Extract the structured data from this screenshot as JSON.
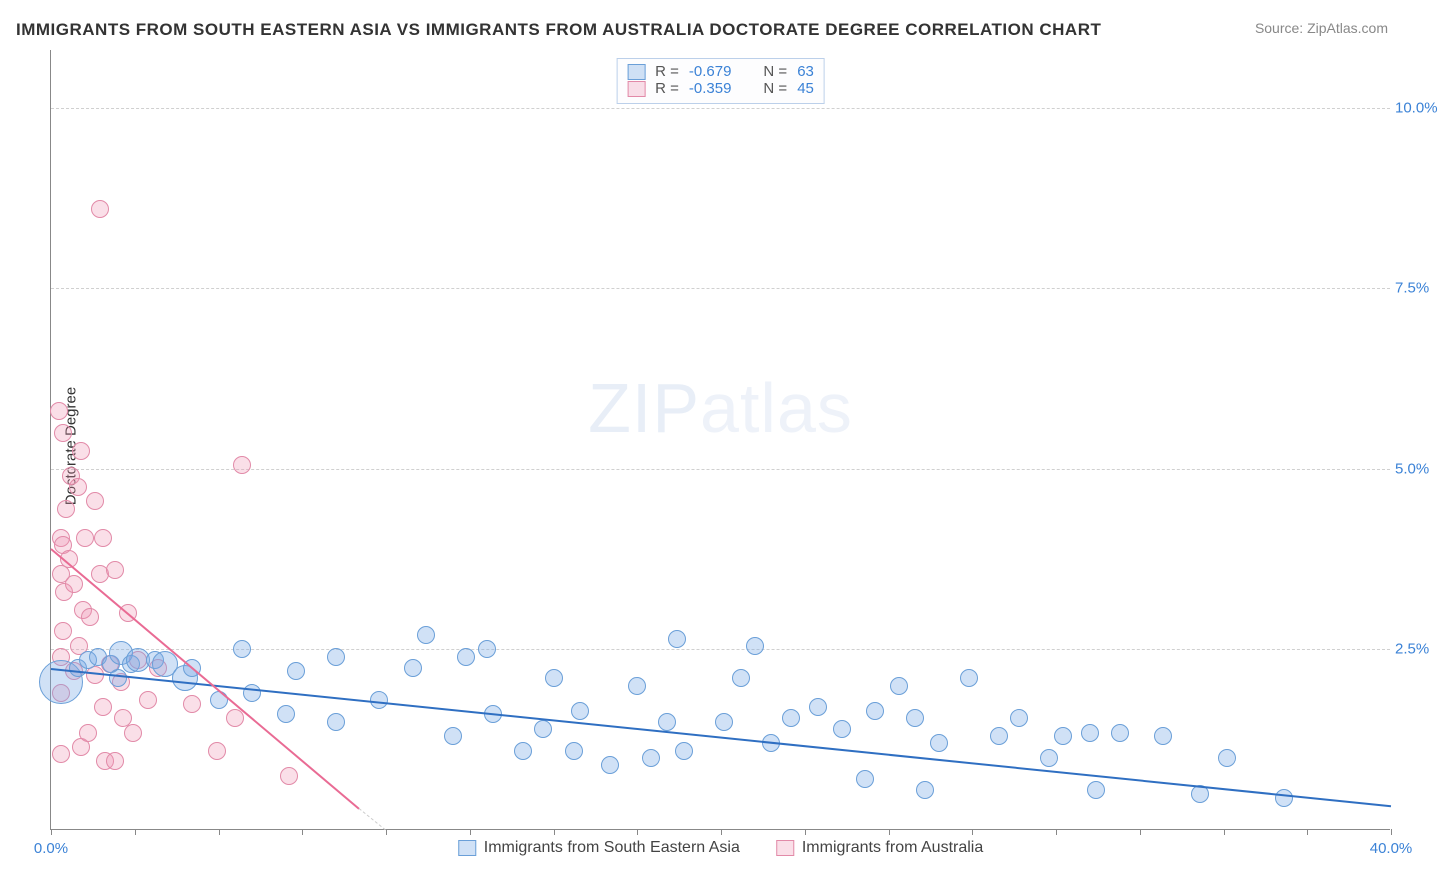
{
  "title": "IMMIGRANTS FROM SOUTH EASTERN ASIA VS IMMIGRANTS FROM AUSTRALIA DOCTORATE DEGREE CORRELATION CHART",
  "source": "Source: ZipAtlas.com",
  "watermark_a": "ZIP",
  "watermark_b": "atlas",
  "y_axis_title": "Doctorate Degree",
  "chart": {
    "type": "scatter",
    "xlim": [
      0,
      40
    ],
    "ylim": [
      0,
      10.8
    ],
    "y_ticks": [
      2.5,
      5.0,
      7.5,
      10.0
    ],
    "y_tick_labels": [
      "2.5%",
      "5.0%",
      "7.5%",
      "10.0%"
    ],
    "x_ticks": [
      0,
      2.5,
      5,
      7.5,
      10,
      12.5,
      15,
      17.5,
      20,
      22.5,
      25,
      27.5,
      30,
      32.5,
      35,
      37.5,
      40
    ],
    "x_min_label": "0.0%",
    "x_max_label": "40.0%",
    "grid_color": "#d0d0d0",
    "background_color": "#ffffff",
    "series": {
      "blue": {
        "label": "Immigrants from South Eastern Asia",
        "color_fill": "rgba(120,170,230,0.35)",
        "color_stroke": "#6a9fd8",
        "trend_color": "#2f6fc2",
        "R": "-0.679",
        "N": "63",
        "marker_radius": 9,
        "trend": {
          "x1": 0,
          "y1": 2.25,
          "x2": 40,
          "y2": 0.35
        },
        "points": [
          {
            "x": 0.3,
            "y": 2.05,
            "r": 22
          },
          {
            "x": 0.8,
            "y": 2.25
          },
          {
            "x": 1.1,
            "y": 2.35
          },
          {
            "x": 1.4,
            "y": 2.4
          },
          {
            "x": 1.8,
            "y": 2.3
          },
          {
            "x": 2.0,
            "y": 2.1
          },
          {
            "x": 2.1,
            "y": 2.45,
            "r": 12
          },
          {
            "x": 2.4,
            "y": 2.3
          },
          {
            "x": 2.6,
            "y": 2.35,
            "r": 12
          },
          {
            "x": 3.1,
            "y": 2.35
          },
          {
            "x": 3.4,
            "y": 2.3,
            "r": 13
          },
          {
            "x": 4.0,
            "y": 2.1,
            "r": 13
          },
          {
            "x": 4.2,
            "y": 2.25
          },
          {
            "x": 5.0,
            "y": 1.8
          },
          {
            "x": 6.0,
            "y": 1.9
          },
          {
            "x": 5.7,
            "y": 2.5
          },
          {
            "x": 7.0,
            "y": 1.6
          },
          {
            "x": 7.3,
            "y": 2.2
          },
          {
            "x": 8.5,
            "y": 2.4
          },
          {
            "x": 8.5,
            "y": 1.5
          },
          {
            "x": 9.8,
            "y": 1.8
          },
          {
            "x": 10.8,
            "y": 2.25
          },
          {
            "x": 11.2,
            "y": 2.7
          },
          {
            "x": 12.0,
            "y": 1.3
          },
          {
            "x": 12.4,
            "y": 2.4
          },
          {
            "x": 13.0,
            "y": 2.5
          },
          {
            "x": 13.2,
            "y": 1.6
          },
          {
            "x": 14.1,
            "y": 1.1
          },
          {
            "x": 14.7,
            "y": 1.4
          },
          {
            "x": 15.0,
            "y": 2.1
          },
          {
            "x": 15.6,
            "y": 1.1
          },
          {
            "x": 15.8,
            "y": 1.65
          },
          {
            "x": 16.7,
            "y": 0.9
          },
          {
            "x": 17.5,
            "y": 2.0
          },
          {
            "x": 17.9,
            "y": 1.0
          },
          {
            "x": 18.4,
            "y": 1.5
          },
          {
            "x": 18.7,
            "y": 2.65
          },
          {
            "x": 18.9,
            "y": 1.1
          },
          {
            "x": 20.1,
            "y": 1.5
          },
          {
            "x": 20.6,
            "y": 2.1
          },
          {
            "x": 21.0,
            "y": 2.55
          },
          {
            "x": 21.5,
            "y": 1.2
          },
          {
            "x": 22.1,
            "y": 1.55
          },
          {
            "x": 22.9,
            "y": 1.7
          },
          {
            "x": 23.6,
            "y": 1.4
          },
          {
            "x": 24.3,
            "y": 0.7
          },
          {
            "x": 24.6,
            "y": 1.65
          },
          {
            "x": 25.3,
            "y": 2.0
          },
          {
            "x": 25.8,
            "y": 1.55
          },
          {
            "x": 26.1,
            "y": 0.55
          },
          {
            "x": 26.5,
            "y": 1.2
          },
          {
            "x": 27.4,
            "y": 2.1
          },
          {
            "x": 28.3,
            "y": 1.3
          },
          {
            "x": 28.9,
            "y": 1.55
          },
          {
            "x": 29.8,
            "y": 1.0
          },
          {
            "x": 30.2,
            "y": 1.3
          },
          {
            "x": 31.0,
            "y": 1.35
          },
          {
            "x": 31.2,
            "y": 0.55
          },
          {
            "x": 31.9,
            "y": 1.35
          },
          {
            "x": 33.2,
            "y": 1.3
          },
          {
            "x": 34.3,
            "y": 0.5
          },
          {
            "x": 35.1,
            "y": 1.0
          },
          {
            "x": 36.8,
            "y": 0.45
          }
        ]
      },
      "pink": {
        "label": "Immigrants from Australia",
        "color_fill": "rgba(240,150,180,0.30)",
        "color_stroke": "#e28aa8",
        "trend_color": "#e96b94",
        "R": "-0.359",
        "N": "45",
        "marker_radius": 9,
        "trend": {
          "x1": 0,
          "y1": 3.9,
          "x2": 9.2,
          "y2": 0.3
        },
        "trend_dash": {
          "x1": 9.2,
          "y1": 0.3,
          "x2": 10.0,
          "y2": 0.0
        },
        "points": [
          {
            "x": 0.25,
            "y": 5.8
          },
          {
            "x": 0.35,
            "y": 5.5
          },
          {
            "x": 0.3,
            "y": 4.05
          },
          {
            "x": 0.35,
            "y": 3.95
          },
          {
            "x": 0.3,
            "y": 3.55
          },
          {
            "x": 0.4,
            "y": 3.3
          },
          {
            "x": 0.35,
            "y": 2.75
          },
          {
            "x": 0.3,
            "y": 2.4
          },
          {
            "x": 0.3,
            "y": 1.05
          },
          {
            "x": 0.3,
            "y": 1.9
          },
          {
            "x": 0.45,
            "y": 4.45
          },
          {
            "x": 0.55,
            "y": 3.75
          },
          {
            "x": 0.6,
            "y": 4.9
          },
          {
            "x": 0.7,
            "y": 2.2
          },
          {
            "x": 0.7,
            "y": 3.4
          },
          {
            "x": 0.8,
            "y": 4.75
          },
          {
            "x": 0.85,
            "y": 2.55
          },
          {
            "x": 0.9,
            "y": 5.25
          },
          {
            "x": 0.95,
            "y": 3.05
          },
          {
            "x": 0.9,
            "y": 1.15
          },
          {
            "x": 1.0,
            "y": 4.05
          },
          {
            "x": 1.1,
            "y": 1.35
          },
          {
            "x": 1.15,
            "y": 2.95
          },
          {
            "x": 1.3,
            "y": 4.55
          },
          {
            "x": 1.3,
            "y": 2.15
          },
          {
            "x": 1.45,
            "y": 3.55
          },
          {
            "x": 1.55,
            "y": 1.7
          },
          {
            "x": 1.55,
            "y": 4.05
          },
          {
            "x": 1.6,
            "y": 0.95
          },
          {
            "x": 1.75,
            "y": 2.3
          },
          {
            "x": 1.9,
            "y": 3.6
          },
          {
            "x": 1.9,
            "y": 0.95
          },
          {
            "x": 2.1,
            "y": 2.05
          },
          {
            "x": 2.15,
            "y": 1.55
          },
          {
            "x": 2.3,
            "y": 3.0
          },
          {
            "x": 2.45,
            "y": 1.35
          },
          {
            "x": 2.6,
            "y": 2.35
          },
          {
            "x": 2.9,
            "y": 1.8
          },
          {
            "x": 3.2,
            "y": 2.25
          },
          {
            "x": 4.2,
            "y": 1.75
          },
          {
            "x": 4.95,
            "y": 1.1
          },
          {
            "x": 5.5,
            "y": 1.55
          },
          {
            "x": 5.7,
            "y": 5.05
          },
          {
            "x": 7.1,
            "y": 0.75
          },
          {
            "x": 1.45,
            "y": 8.6
          }
        ]
      }
    }
  },
  "stat_labels": {
    "R": "R =",
    "N": "N ="
  }
}
